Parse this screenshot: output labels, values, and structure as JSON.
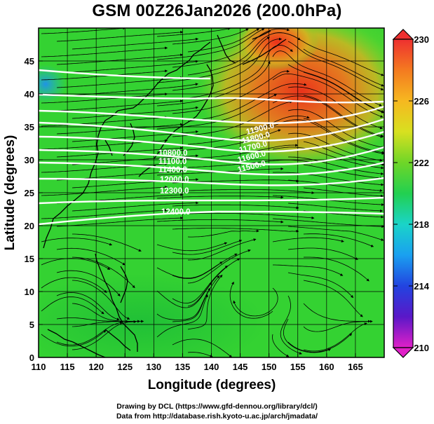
{
  "title": "GSM 00Z26Jan2026 (200.0hPa)",
  "credits": {
    "line1": "Drawing by DCL (https://www.gfd-dennou.org/library/dcl/)",
    "line2": "Data from http://database.rish.kyoto-u.ac.jp/arch/jmadata/"
  },
  "map": {
    "xlabel": "Longitude (degrees)",
    "ylabel": "Latitude  (degrees)",
    "xlim": [
      110,
      170
    ],
    "ylim": [
      0,
      50
    ],
    "xticks": [
      "110",
      "115",
      "120",
      "125",
      "130",
      "135",
      "140",
      "145",
      "150",
      "155",
      "160",
      "165"
    ],
    "yticks": [
      "0",
      "5",
      "10",
      "15",
      "20",
      "25",
      "30",
      "35",
      "40",
      "45"
    ],
    "grid": true,
    "colorbar": {
      "ticks": [
        "230",
        "226",
        "222",
        "218",
        "214",
        "210"
      ],
      "range": [
        210,
        230
      ]
    },
    "contour_labels": [
      "10800.0",
      "11100.0",
      "11400.0",
      "11700.0",
      "12000.0",
      "12300.0",
      "12400.0",
      "11500.0",
      "11600.0",
      "11700.0",
      "11800.0",
      "11900.0"
    ]
  },
  "colors": {
    "background_field": "#2fd42f",
    "warm_center": "#ee3a1f",
    "cool_patch": "#2aa0e8",
    "contour": "#ffffff",
    "streamline": "#000000"
  }
}
